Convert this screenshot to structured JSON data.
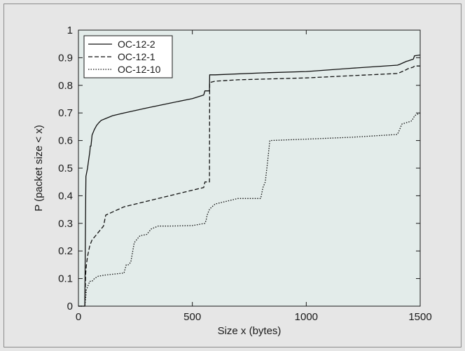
{
  "chart_data": {
    "type": "line",
    "xlabel": "Size x (bytes)",
    "ylabel": "P (packet size < x)",
    "xlim": [
      0,
      1500
    ],
    "ylim": [
      0,
      1
    ],
    "x_ticks": [
      0,
      500,
      1000,
      1500
    ],
    "y_ticks": [
      0,
      0.1,
      0.2,
      0.3,
      0.4,
      0.5,
      0.6,
      0.7,
      0.8,
      0.9,
      1
    ],
    "grid": false,
    "legend_position": "top-left",
    "plot_background": "#e3ecea",
    "series": [
      {
        "name": "OC-12-2",
        "style": "solid",
        "x": [
          0,
          28,
          32,
          33,
          40,
          45,
          50,
          52,
          55,
          60,
          70,
          80,
          90,
          100,
          120,
          150,
          200,
          300,
          400,
          500,
          550,
          555,
          575,
          576,
          600,
          800,
          1000,
          1200,
          1400,
          1410,
          1440,
          1445,
          1470,
          1475,
          1500
        ],
        "y": [
          0,
          0,
          0.4,
          0.47,
          0.5,
          0.53,
          0.56,
          0.58,
          0.58,
          0.62,
          0.64,
          0.655,
          0.665,
          0.673,
          0.68,
          0.69,
          0.7,
          0.718,
          0.735,
          0.752,
          0.765,
          0.78,
          0.78,
          0.838,
          0.838,
          0.845,
          0.85,
          0.862,
          0.873,
          0.876,
          0.887,
          0.888,
          0.895,
          0.907,
          0.91
        ]
      },
      {
        "name": "OC-12-1",
        "style": "dashed",
        "x": [
          0,
          28,
          32,
          35,
          40,
          45,
          50,
          60,
          70,
          80,
          90,
          100,
          110,
          120,
          200,
          300,
          400,
          500,
          550,
          555,
          575,
          576,
          600,
          700,
          1000,
          1200,
          1400,
          1410,
          1440,
          1445,
          1470,
          1475,
          1500
        ],
        "y": [
          0,
          0,
          0.12,
          0.15,
          0.18,
          0.2,
          0.22,
          0.24,
          0.25,
          0.26,
          0.27,
          0.28,
          0.29,
          0.33,
          0.36,
          0.38,
          0.4,
          0.42,
          0.43,
          0.45,
          0.45,
          0.81,
          0.815,
          0.82,
          0.827,
          0.835,
          0.843,
          0.846,
          0.857,
          0.86,
          0.866,
          0.87,
          0.87
        ]
      },
      {
        "name": "OC-12-10",
        "style": "dotted",
        "x": [
          0,
          28,
          32,
          35,
          40,
          45,
          50,
          60,
          70,
          80,
          90,
          100,
          110,
          120,
          200,
          210,
          220,
          230,
          245,
          270,
          300,
          320,
          350,
          400,
          500,
          555,
          560,
          565,
          570,
          575,
          580,
          600,
          650,
          700,
          800,
          810,
          820,
          830,
          840,
          1000,
          1200,
          1400,
          1410,
          1420,
          1440,
          1460,
          1470,
          1475,
          1500
        ],
        "y": [
          0,
          0,
          0.03,
          0.06,
          0.07,
          0.08,
          0.09,
          0.09,
          0.1,
          0.105,
          0.11,
          0.11,
          0.112,
          0.113,
          0.12,
          0.15,
          0.15,
          0.16,
          0.23,
          0.255,
          0.26,
          0.28,
          0.29,
          0.29,
          0.292,
          0.3,
          0.31,
          0.33,
          0.34,
          0.35,
          0.355,
          0.37,
          0.38,
          0.39,
          0.39,
          0.43,
          0.45,
          0.52,
          0.6,
          0.605,
          0.612,
          0.622,
          0.64,
          0.66,
          0.665,
          0.67,
          0.68,
          0.69,
          0.7
        ]
      }
    ]
  }
}
